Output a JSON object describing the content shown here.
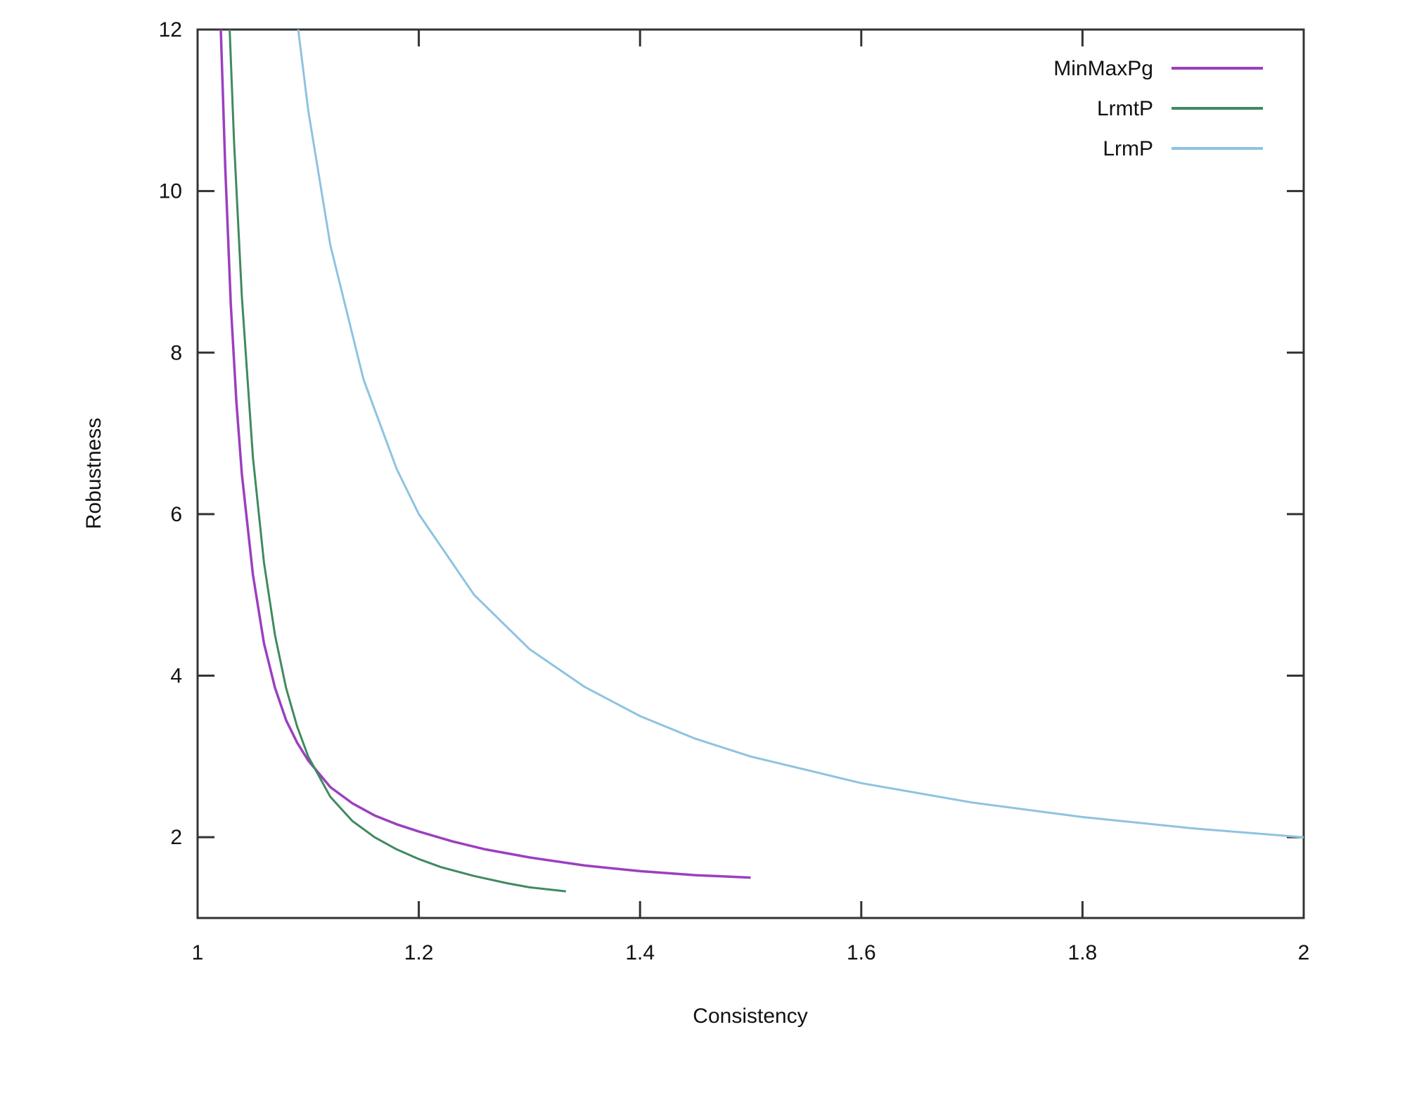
{
  "chart_data": {
    "type": "line",
    "xlabel": "Consistency",
    "ylabel": "Robustness",
    "xlim": [
      1,
      2
    ],
    "ylim": [
      1,
      12
    ],
    "x_ticks": [
      "1",
      "1.2",
      "1.4",
      "1.6",
      "1.8",
      "2"
    ],
    "y_ticks": [
      "2",
      "4",
      "6",
      "8",
      "10",
      "12"
    ],
    "legend_position": "top-right",
    "grid": false,
    "series": [
      {
        "name": "MinMaxPg",
        "color": "#9b3fc0",
        "x": [
          1.021,
          1.025,
          1.03,
          1.035,
          1.04,
          1.05,
          1.06,
          1.07,
          1.08,
          1.09,
          1.1,
          1.12,
          1.14,
          1.16,
          1.18,
          1.2,
          1.23,
          1.26,
          1.3,
          1.35,
          1.4,
          1.45,
          1.5
        ],
        "y": [
          12.0,
          10.3,
          8.6,
          7.4,
          6.5,
          5.25,
          4.4,
          3.85,
          3.45,
          3.17,
          2.95,
          2.62,
          2.42,
          2.27,
          2.16,
          2.07,
          1.95,
          1.85,
          1.75,
          1.65,
          1.58,
          1.53,
          1.5
        ]
      },
      {
        "name": "LrmtP",
        "color": "#3f8a5f",
        "x": [
          1.029,
          1.033,
          1.04,
          1.05,
          1.06,
          1.07,
          1.08,
          1.09,
          1.1,
          1.12,
          1.14,
          1.16,
          1.18,
          1.2,
          1.22,
          1.25,
          1.28,
          1.3,
          1.333
        ],
        "y": [
          12.0,
          10.6,
          8.7,
          6.7,
          5.4,
          4.5,
          3.85,
          3.37,
          3.0,
          2.5,
          2.2,
          2.0,
          1.85,
          1.73,
          1.63,
          1.52,
          1.43,
          1.38,
          1.33
        ]
      },
      {
        "name": "LrmP",
        "color": "#8ec3e0",
        "x": [
          1.091,
          1.1,
          1.12,
          1.15,
          1.18,
          1.2,
          1.25,
          1.3,
          1.35,
          1.4,
          1.45,
          1.5,
          1.6,
          1.7,
          1.8,
          1.9,
          2.0
        ],
        "y": [
          12.0,
          11.0,
          9.33,
          7.67,
          6.56,
          6.0,
          5.0,
          4.33,
          3.86,
          3.5,
          3.22,
          3.0,
          2.67,
          2.43,
          2.25,
          2.11,
          2.0
        ]
      }
    ]
  }
}
